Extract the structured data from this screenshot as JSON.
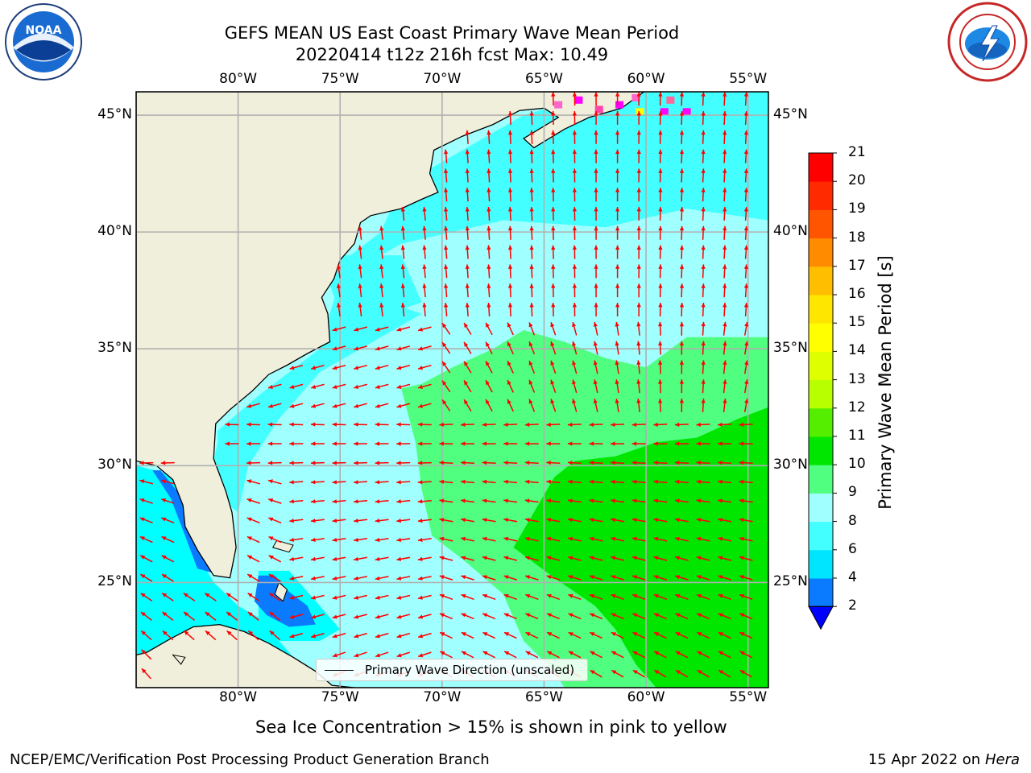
{
  "header": {
    "title_line1": "GEFS MEAN US East Coast Primary Wave Mean Period",
    "title_line2": "20220414 t12z 216h fcst   Max: 10.49"
  },
  "logos": {
    "left": "noaa-logo-icon",
    "right": "national-weather-service-logo-icon",
    "noaa_text": "NOAA"
  },
  "map": {
    "lon_range": [
      -85,
      -54
    ],
    "lat_range": [
      20.5,
      46
    ],
    "lon_labels": [
      "80°W",
      "75°W",
      "70°W",
      "65°W",
      "60°W",
      "55°W"
    ],
    "lat_labels": [
      "45°N",
      "40°N",
      "35°N",
      "30°N",
      "25°N"
    ],
    "right_lat_labels": [
      "45°N",
      "40°N",
      "35°N",
      "30°N",
      "25°N"
    ],
    "colors": {
      "land": "#efefdc",
      "arrow": "#ff0000",
      "grid": "#b0b0b0"
    }
  },
  "legend": {
    "label": "Primary Wave Direction (unscaled)"
  },
  "colorbar": {
    "label": "Primary Wave Mean Period [s]",
    "ticks": [
      "2",
      "4",
      "6",
      "8",
      "9",
      "10",
      "11",
      "12",
      "13",
      "14",
      "15",
      "16",
      "17",
      "18",
      "19",
      "20",
      "21"
    ],
    "colors": [
      "#0a7aff",
      "#00e5ff",
      "#44ffff",
      "#a0ffff",
      "#50ff7f",
      "#00e600",
      "#55ee00",
      "#b8ff00",
      "#ddff00",
      "#ffff00",
      "#ffe600",
      "#ffbf00",
      "#ff8c00",
      "#ff5500",
      "#ff2a00",
      "#ff0000"
    ],
    "extend_color": "#0000ff"
  },
  "footer": {
    "caption": "Sea Ice Concentration > 15% is shown in pink to yellow",
    "left": "NCEP/EMC/Verification Post Processing Product Generation Branch",
    "right_date": "15 Apr 2022 on ",
    "right_host": "Hera"
  }
}
